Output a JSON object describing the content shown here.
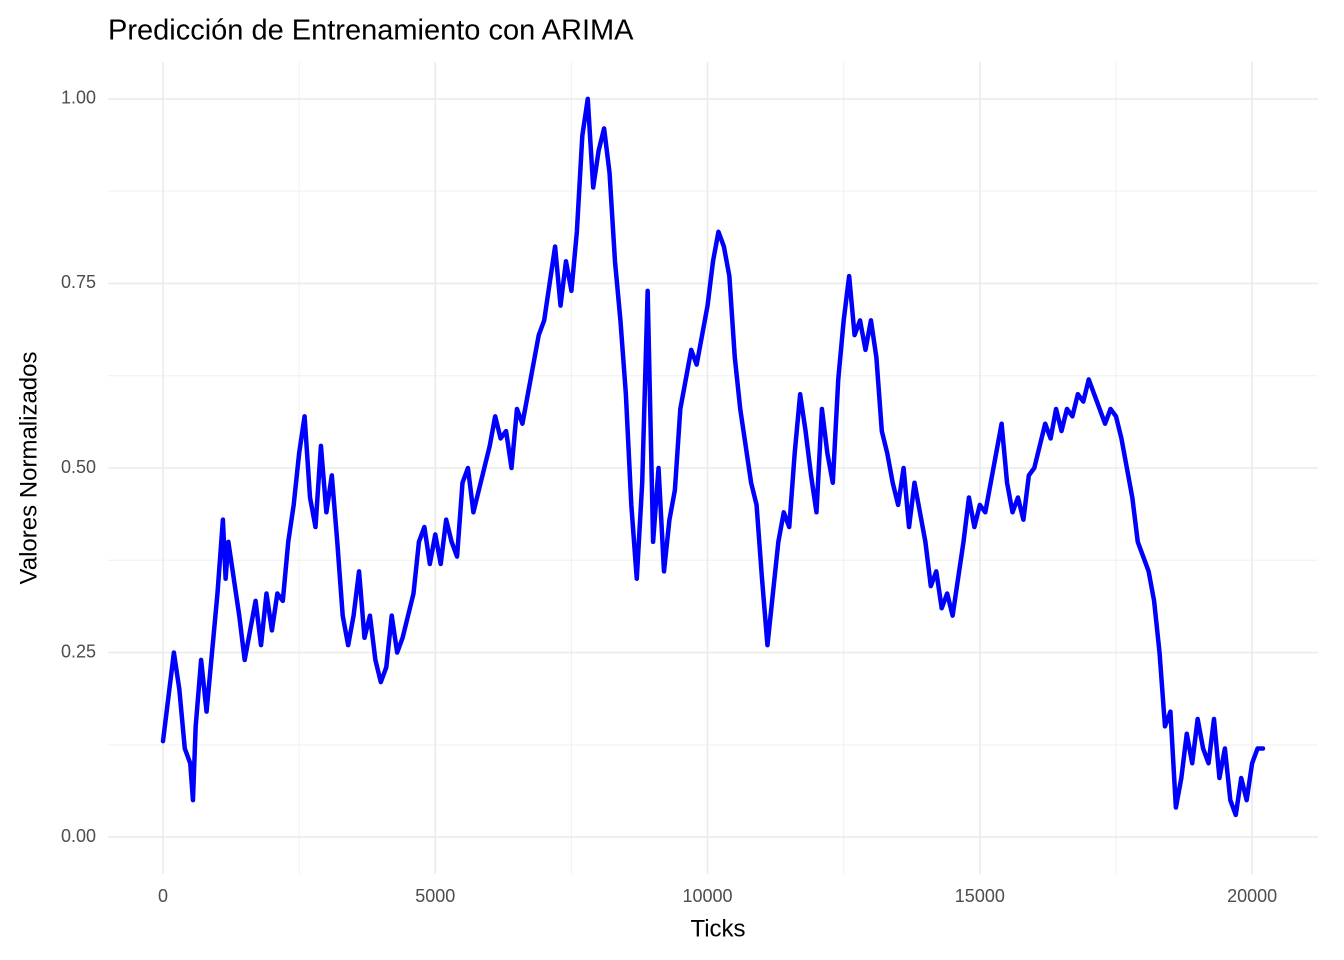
{
  "chart_data": {
    "type": "line",
    "title": "Predicción de Entrenamiento con ARIMA",
    "x_label": "Ticks",
    "y_label": "Valores Normalizados",
    "xlim": [
      -1010,
      21210
    ],
    "ylim": [
      -0.05,
      1.05
    ],
    "xticks": [
      0,
      5000,
      10000,
      15000,
      20000
    ],
    "yticks": [
      {
        "value": 0,
        "label": "0.00"
      },
      {
        "value": 0.25,
        "label": "0.25"
      },
      {
        "value": 0.5,
        "label": "0.50"
      },
      {
        "value": 0.75,
        "label": "0.75"
      },
      {
        "value": 1,
        "label": "1.00"
      }
    ],
    "grid": true,
    "x": [
      0,
      200,
      300,
      400,
      500,
      550,
      600,
      700,
      800,
      900,
      1000,
      1100,
      1150,
      1200,
      1300,
      1400,
      1500,
      1600,
      1700,
      1800,
      1900,
      2000,
      2100,
      2200,
      2300,
      2400,
      2500,
      2600,
      2700,
      2800,
      2900,
      3000,
      3100,
      3200,
      3300,
      3400,
      3500,
      3600,
      3700,
      3800,
      3900,
      4000,
      4100,
      4200,
      4300,
      4400,
      4500,
      4600,
      4700,
      4800,
      4900,
      5000,
      5100,
      5200,
      5300,
      5400,
      5500,
      5600,
      5700,
      5800,
      5900,
      6000,
      6100,
      6200,
      6300,
      6400,
      6500,
      6600,
      6700,
      6800,
      6900,
      7000,
      7100,
      7200,
      7300,
      7400,
      7500,
      7600,
      7700,
      7800,
      7900,
      8000,
      8100,
      8200,
      8300,
      8400,
      8500,
      8600,
      8700,
      8800,
      8900,
      9000,
      9100,
      9200,
      9300,
      9400,
      9500,
      9600,
      9700,
      9800,
      9900,
      10000,
      10100,
      10200,
      10300,
      10400,
      10500,
      10600,
      10700,
      10800,
      10900,
      11000,
      11100,
      11200,
      11300,
      11400,
      11500,
      11600,
      11700,
      11800,
      11900,
      12000,
      12100,
      12200,
      12300,
      12400,
      12500,
      12600,
      12700,
      12800,
      12900,
      13000,
      13100,
      13200,
      13300,
      13400,
      13500,
      13600,
      13700,
      13800,
      13900,
      14000,
      14100,
      14200,
      14300,
      14400,
      14500,
      14600,
      14700,
      14800,
      14900,
      15000,
      15100,
      15200,
      15300,
      15400,
      15500,
      15600,
      15700,
      15800,
      15900,
      16000,
      16100,
      16200,
      16300,
      16400,
      16500,
      16600,
      16700,
      16800,
      16900,
      17000,
      17100,
      17200,
      17300,
      17400,
      17500,
      17600,
      17700,
      17800,
      17900,
      18000,
      18100,
      18200,
      18300,
      18400,
      18500,
      18600,
      18700,
      18800,
      18900,
      19000,
      19100,
      19200,
      19300,
      19400,
      19500,
      19600,
      19700,
      19800,
      19900,
      20000,
      20100,
      20200
    ],
    "series": [
      {
        "color": "#0000ff",
        "values": [
          0.13,
          0.25,
          0.2,
          0.12,
          0.1,
          0.05,
          0.15,
          0.24,
          0.17,
          0.25,
          0.33,
          0.43,
          0.35,
          0.4,
          0.35,
          0.3,
          0.24,
          0.28,
          0.32,
          0.26,
          0.33,
          0.28,
          0.33,
          0.32,
          0.4,
          0.45,
          0.52,
          0.57,
          0.46,
          0.42,
          0.53,
          0.44,
          0.49,
          0.4,
          0.3,
          0.26,
          0.3,
          0.36,
          0.27,
          0.3,
          0.24,
          0.21,
          0.23,
          0.3,
          0.25,
          0.27,
          0.3,
          0.33,
          0.4,
          0.42,
          0.37,
          0.41,
          0.37,
          0.43,
          0.4,
          0.38,
          0.48,
          0.5,
          0.44,
          0.47,
          0.5,
          0.53,
          0.57,
          0.54,
          0.55,
          0.5,
          0.58,
          0.56,
          0.6,
          0.64,
          0.68,
          0.7,
          0.75,
          0.8,
          0.72,
          0.78,
          0.74,
          0.82,
          0.95,
          1.0,
          0.88,
          0.93,
          0.96,
          0.9,
          0.78,
          0.7,
          0.6,
          0.45,
          0.35,
          0.48,
          0.74,
          0.4,
          0.5,
          0.36,
          0.43,
          0.47,
          0.58,
          0.62,
          0.66,
          0.64,
          0.68,
          0.72,
          0.78,
          0.82,
          0.8,
          0.76,
          0.65,
          0.58,
          0.53,
          0.48,
          0.45,
          0.35,
          0.26,
          0.33,
          0.4,
          0.44,
          0.42,
          0.52,
          0.6,
          0.55,
          0.49,
          0.44,
          0.58,
          0.52,
          0.48,
          0.62,
          0.7,
          0.76,
          0.68,
          0.7,
          0.66,
          0.7,
          0.65,
          0.55,
          0.52,
          0.48,
          0.45,
          0.5,
          0.42,
          0.48,
          0.44,
          0.4,
          0.34,
          0.36,
          0.31,
          0.33,
          0.3,
          0.35,
          0.4,
          0.46,
          0.42,
          0.45,
          0.44,
          0.48,
          0.52,
          0.56,
          0.48,
          0.44,
          0.46,
          0.43,
          0.49,
          0.5,
          0.53,
          0.56,
          0.54,
          0.58,
          0.55,
          0.58,
          0.57,
          0.6,
          0.59,
          0.62,
          0.6,
          0.58,
          0.56,
          0.58,
          0.57,
          0.54,
          0.5,
          0.46,
          0.4,
          0.38,
          0.36,
          0.32,
          0.25,
          0.15,
          0.17,
          0.04,
          0.08,
          0.14,
          0.1,
          0.16,
          0.12,
          0.1,
          0.16,
          0.08,
          0.12,
          0.05,
          0.03,
          0.08,
          0.05,
          0.1,
          0.12,
          0.12
        ]
      }
    ]
  }
}
